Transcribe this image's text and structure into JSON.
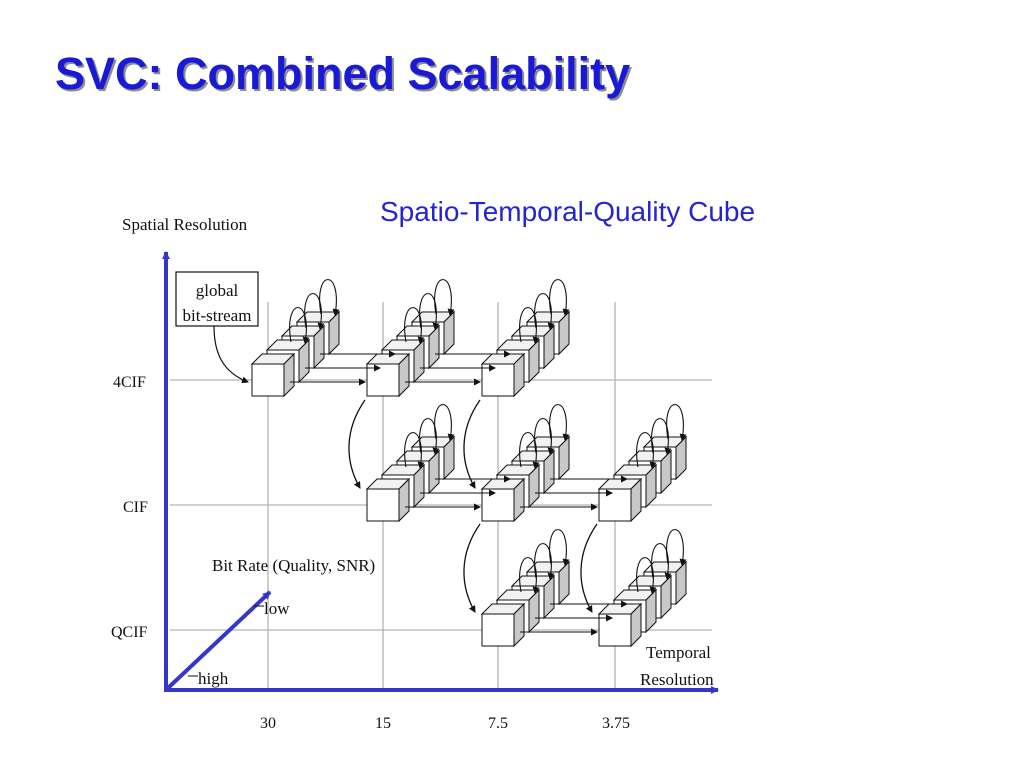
{
  "slide": {
    "title": "SVC: Combined Scalability",
    "subtitle": "Spatio-Temporal-Quality Cube"
  },
  "diagram": {
    "y_axis_label": "Spatial Resolution",
    "x_axis_label_line1": "Temporal",
    "x_axis_label_line2": "Resolution",
    "depth_axis_label": "Bit Rate (Quality, SNR)",
    "depth_low_label": "low",
    "depth_high_label": "high",
    "callout_line1": "global",
    "callout_line2": "bit-stream",
    "spatial_levels": [
      "4CIF",
      "CIF",
      "QCIF"
    ],
    "temporal_levels": [
      "30",
      "15",
      "7.5",
      "3.75"
    ],
    "colors": {
      "axis": "#3636c8",
      "grid": "#b4b4b4",
      "title": "#1a1ad6",
      "subtitle": "#2525d0"
    }
  }
}
